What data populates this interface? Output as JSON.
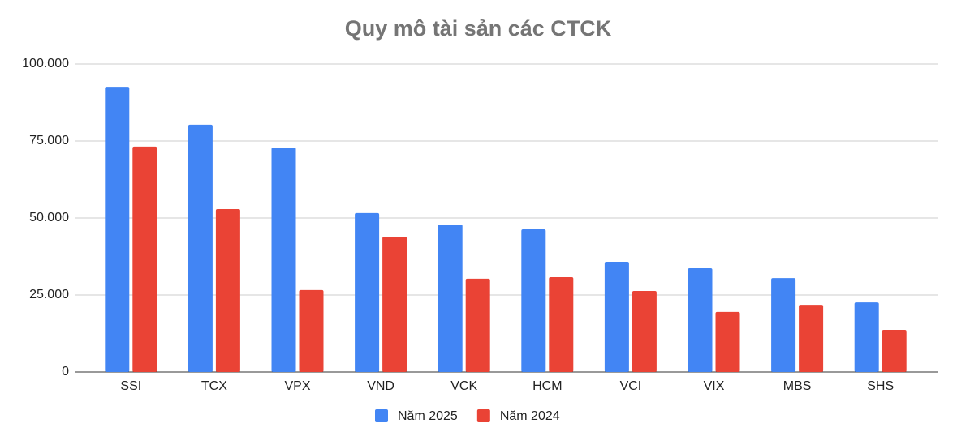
{
  "chart_data": {
    "type": "bar",
    "title": "Quy mô tài sản các CTCK",
    "categories": [
      "SSI",
      "TCX",
      "VPX",
      "VND",
      "VCK",
      "HCM",
      "VCI",
      "VIX",
      "MBS",
      "SHS"
    ],
    "series": [
      {
        "name": "Năm 2025",
        "color": "#4285f4",
        "values": [
          92600,
          80300,
          72900,
          51600,
          47900,
          46300,
          35800,
          33700,
          30500,
          22600
        ]
      },
      {
        "name": "Năm 2024",
        "color": "#ea4335",
        "values": [
          73200,
          52900,
          26600,
          43900,
          30300,
          30800,
          26300,
          19500,
          21800,
          13700
        ]
      }
    ],
    "ylim": [
      0,
      100000
    ],
    "yticks": [
      0,
      {
        "value": 25000,
        "label": "25.000"
      },
      {
        "value": 50000,
        "label": "50.000"
      },
      {
        "value": 75000,
        "label": "75.000"
      },
      {
        "value": 100000,
        "label": "100.000"
      }
    ],
    "grid": true
  }
}
